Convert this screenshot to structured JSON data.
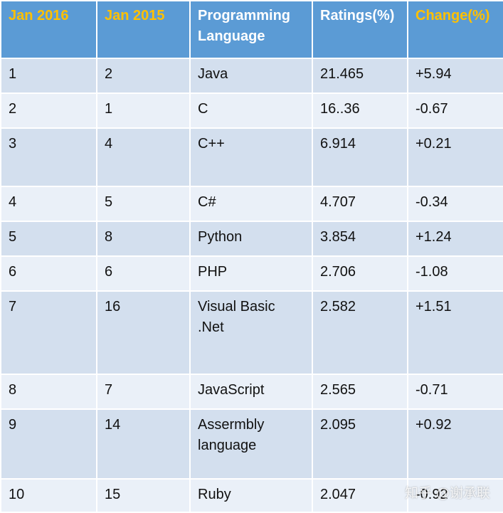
{
  "colors": {
    "header_bg": "#5b9bd5",
    "header_gold": "#ffc000",
    "row_odd": "#d3dfee",
    "row_even": "#eaf0f8"
  },
  "headers": [
    "Jan 2016",
    "Jan 2015",
    "Programming Language",
    "Ratings(%)",
    "Change(%)"
  ],
  "rows": [
    [
      "1",
      "2",
      "Java",
      "21.465",
      "+5.94"
    ],
    [
      "2",
      "1",
      "C",
      "16..36",
      "-0.67"
    ],
    [
      "3",
      "4",
      "C++",
      "6.914",
      "+0.21"
    ],
    [
      "4",
      "5",
      "C#",
      "4.707",
      "-0.34"
    ],
    [
      "5",
      "8",
      "Python",
      "3.854",
      "+1.24"
    ],
    [
      "6",
      "6",
      "PHP",
      "2.706",
      "-1.08"
    ],
    [
      "7",
      "16",
      "Visual Basic .Net",
      "2.582",
      "+1.51"
    ],
    [
      "8",
      "7",
      "JavaScript",
      "2.565",
      "-0.71"
    ],
    [
      "9",
      "14",
      "Assermbly language",
      "2.095",
      "+0.92"
    ],
    [
      "10",
      "15",
      "Ruby",
      "2.047",
      "-0.92"
    ]
  ],
  "watermark": "知乎 @谢承联"
}
